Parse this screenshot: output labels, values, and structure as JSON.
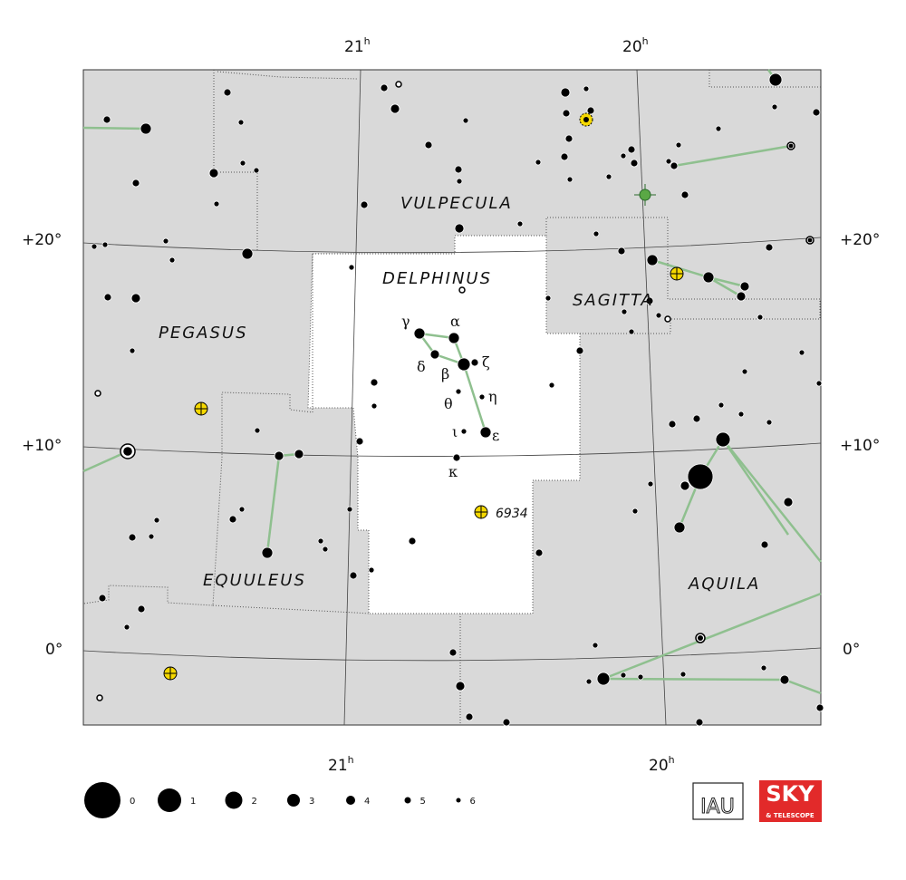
{
  "ra_labels": {
    "top_21": "21",
    "top_20": "20",
    "bottom_21": "21",
    "bottom_20": "20",
    "hour_sup": "h"
  },
  "dec_labels": {
    "plus20": "+20°",
    "plus10": "+10°",
    "zero": "0°"
  },
  "constellations": {
    "vulpecula": "VULPECULA",
    "delphinus": "DELPHINUS",
    "sagitta": "SAGITTA",
    "pegasus": "PEGASUS",
    "equuleus": "EQUULEUS",
    "aquila": "AQUILA"
  },
  "greek": {
    "gamma": "γ",
    "alpha": "α",
    "delta": "δ",
    "beta": "β",
    "zeta": "ζ",
    "theta": "θ",
    "eta": "η",
    "iota": "ι",
    "epsilon": "ε",
    "kappa": "κ"
  },
  "objects": {
    "ngc6934": "6934"
  },
  "legend": {
    "magnitudes": [
      "0",
      "1",
      "2",
      "3",
      "4",
      "5",
      "6"
    ]
  },
  "logos": {
    "iau": "IAU",
    "sky": "SKY",
    "telescope": "& TELESCOPE"
  },
  "colors": {
    "background": "#d9d9d9",
    "highlight": "#ffffff",
    "lines": "#8fc08f",
    "cluster": "#f5d800",
    "nebula": "#5aa845"
  }
}
